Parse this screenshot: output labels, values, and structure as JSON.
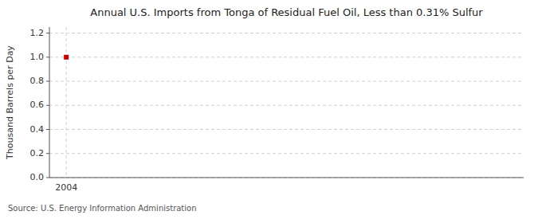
{
  "chart_data": {
    "type": "scatter",
    "title": "Annual U.S. Imports from Tonga of Residual Fuel Oil, Less than 0.31% Sulfur",
    "ylabel": "Thousand Barrels per Day",
    "source": "Source: U.S. Energy Information Administration",
    "x": [
      2004
    ],
    "values": [
      1.0
    ],
    "color": "#cc0000",
    "marker": "square",
    "xlim": [
      2003.3,
      2023
    ],
    "xticks": [
      2004
    ],
    "ylim": [
      0.0,
      1.25
    ],
    "yticks": [
      {
        "value": 0.0,
        "label": "0.0"
      },
      0.2,
      0.4,
      0.6,
      0.8,
      {
        "value": 1.0,
        "label": "1.0"
      },
      1.2
    ],
    "grid": true
  }
}
